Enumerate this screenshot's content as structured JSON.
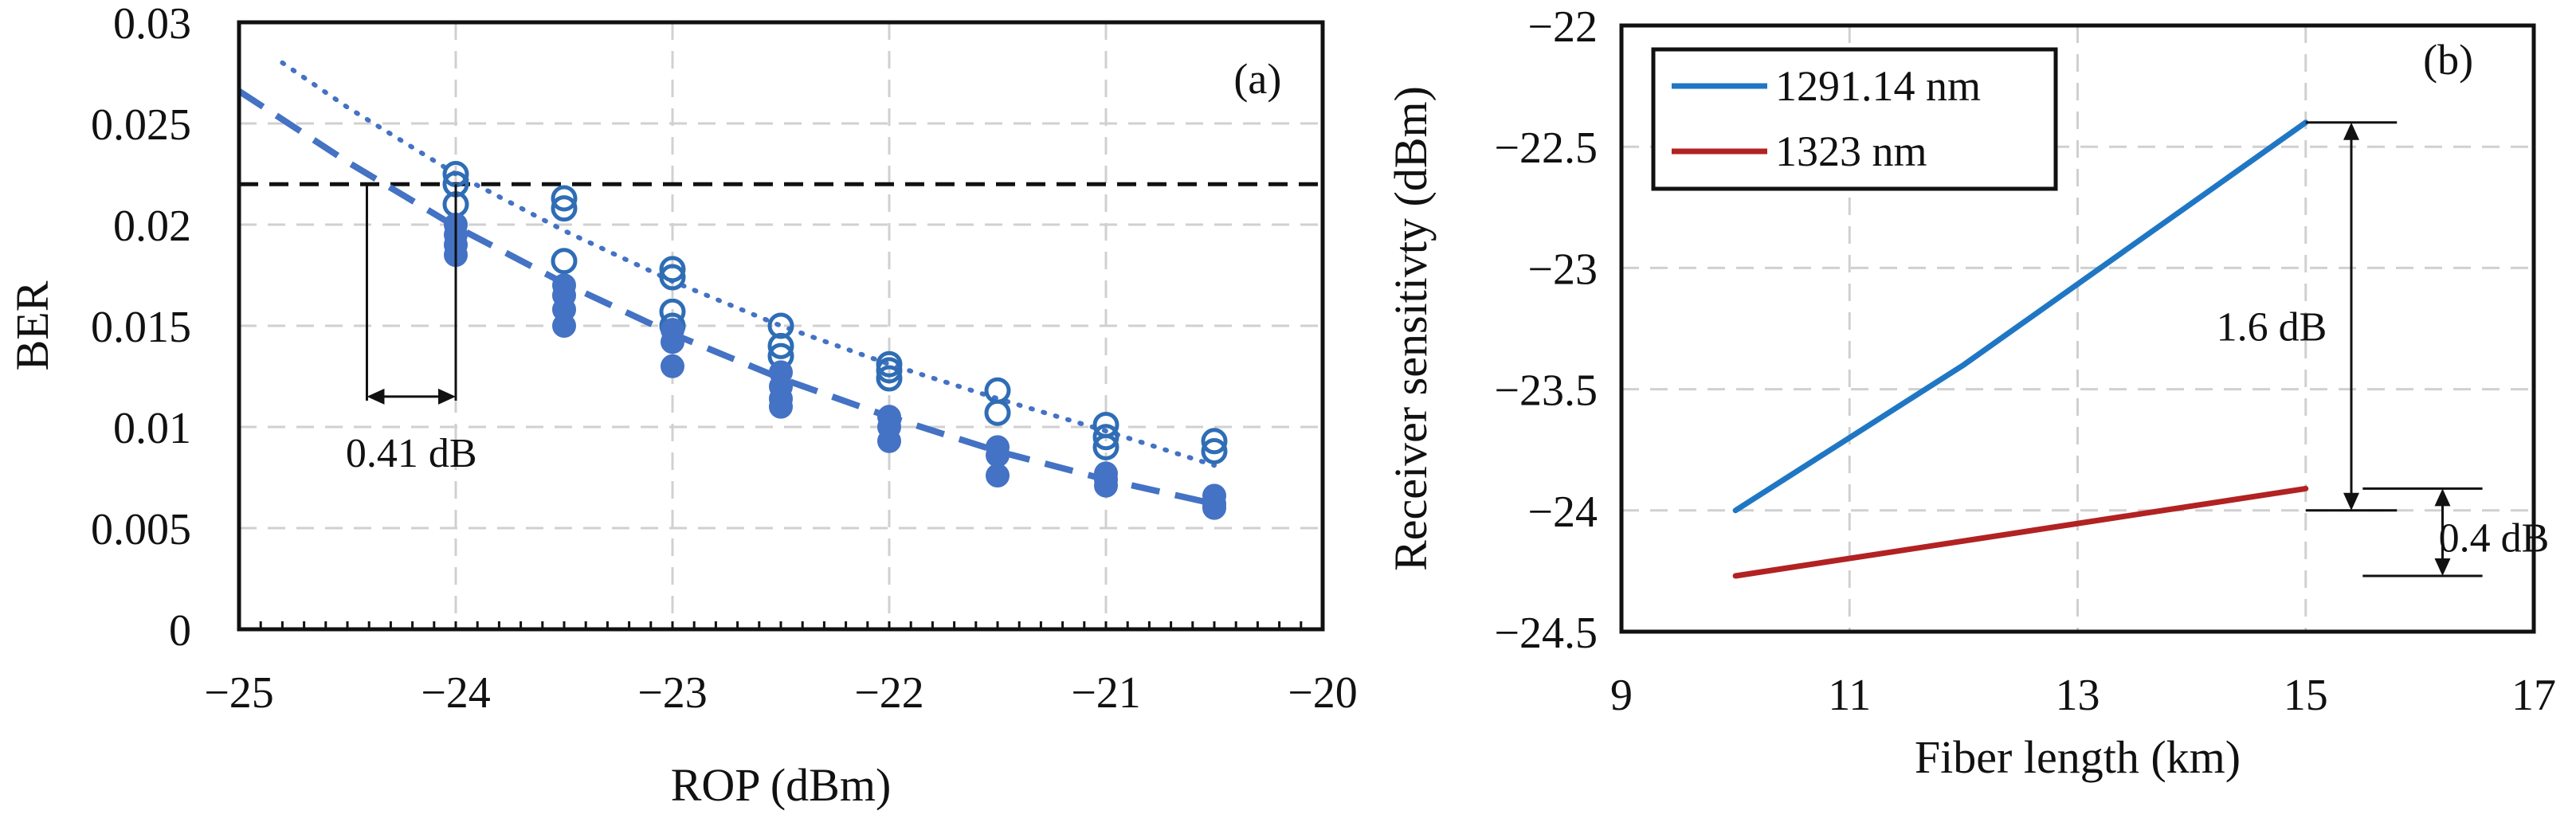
{
  "chart_data": [
    {
      "type": "scatter",
      "panel_label": "(a)",
      "xlabel": "ROP (dBm)",
      "ylabel": "BER",
      "xlim": [
        -25,
        -20
      ],
      "ylim": [
        0,
        0.03
      ],
      "xticks": [
        "−25",
        "−24",
        "−23",
        "−22",
        "−21",
        "−20"
      ],
      "xtick_values": [
        -25,
        -24,
        -23,
        -22,
        -21,
        -20
      ],
      "yticks": [
        "0",
        "0.005",
        "0.01",
        "0.015",
        "0.02",
        "0.025",
        "0.03"
      ],
      "ytick_values": [
        0,
        0.005,
        0.01,
        0.015,
        0.02,
        0.025,
        0.03
      ],
      "grid": true,
      "threshold_ber": 0.022,
      "annotation": {
        "text": "0.41 dB",
        "x_from": -24.41,
        "x_to": -24.0
      },
      "series": [
        {
          "name": "open circles",
          "marker": "open",
          "color": "#2f6db5",
          "points": [
            [
              -24.0,
              0.0225
            ],
            [
              -24.0,
              0.022
            ],
            [
              -24.0,
              0.021
            ],
            [
              -23.5,
              0.0213
            ],
            [
              -23.5,
              0.0208
            ],
            [
              -23.5,
              0.0182
            ],
            [
              -23.0,
              0.0178
            ],
            [
              -23.0,
              0.0174
            ],
            [
              -23.0,
              0.0157
            ],
            [
              -23.0,
              0.015
            ],
            [
              -22.5,
              0.015
            ],
            [
              -22.5,
              0.014
            ],
            [
              -22.5,
              0.0135
            ],
            [
              -22.0,
              0.0131
            ],
            [
              -22.0,
              0.0128
            ],
            [
              -22.0,
              0.0124
            ],
            [
              -21.5,
              0.0118
            ],
            [
              -21.5,
              0.0107
            ],
            [
              -21.0,
              0.0101
            ],
            [
              -21.0,
              0.0095
            ],
            [
              -21.0,
              0.009
            ],
            [
              -20.5,
              0.0093
            ],
            [
              -20.5,
              0.0088
            ]
          ]
        },
        {
          "name": "filled circles",
          "marker": "filled",
          "color": "#4472c4",
          "points": [
            [
              -24.0,
              0.02
            ],
            [
              -24.0,
              0.0195
            ],
            [
              -24.0,
              0.019
            ],
            [
              -24.0,
              0.0185
            ],
            [
              -23.5,
              0.017
            ],
            [
              -23.5,
              0.0165
            ],
            [
              -23.5,
              0.0158
            ],
            [
              -23.5,
              0.015
            ],
            [
              -23.0,
              0.0148
            ],
            [
              -23.0,
              0.0142
            ],
            [
              -23.0,
              0.013
            ],
            [
              -22.5,
              0.0127
            ],
            [
              -22.5,
              0.012
            ],
            [
              -22.5,
              0.0114
            ],
            [
              -22.5,
              0.011
            ],
            [
              -22.0,
              0.0105
            ],
            [
              -22.0,
              0.01
            ],
            [
              -22.0,
              0.0093
            ],
            [
              -21.5,
              0.009
            ],
            [
              -21.5,
              0.0086
            ],
            [
              -21.5,
              0.0076
            ],
            [
              -21.0,
              0.0077
            ],
            [
              -21.0,
              0.0074
            ],
            [
              -21.0,
              0.0071
            ],
            [
              -20.5,
              0.0066
            ],
            [
              -20.5,
              0.0062
            ],
            [
              -20.5,
              0.006
            ]
          ]
        },
        {
          "name": "dotted fit",
          "style": "dotted",
          "color": "#4472c4",
          "x": [
            -24.8,
            -24.5,
            -24.0,
            -23.5,
            -23.0,
            -22.5,
            -22.0,
            -21.5,
            -21.0,
            -20.5
          ],
          "y": [
            0.028,
            0.0258,
            0.0225,
            0.0197,
            0.0172,
            0.015,
            0.0131,
            0.0114,
            0.0098,
            0.0081
          ]
        },
        {
          "name": "dashed fit",
          "style": "dashed",
          "color": "#4472c4",
          "x": [
            -25.0,
            -24.5,
            -24.0,
            -23.5,
            -23.0,
            -22.5,
            -22.0,
            -21.5,
            -21.0,
            -20.5
          ],
          "y": [
            0.0266,
            0.0231,
            0.0199,
            0.0171,
            0.0146,
            0.0124,
            0.0105,
            0.0088,
            0.0074,
            0.0062
          ]
        }
      ]
    },
    {
      "type": "line",
      "panel_label": "(b)",
      "xlabel": "Fiber length (km)",
      "ylabel": "Receiver sensitivty (dBm)",
      "xlim": [
        9,
        17
      ],
      "ylim": [
        -24.5,
        -22
      ],
      "xticks": [
        "9",
        "11",
        "13",
        "15",
        "17"
      ],
      "xtick_values": [
        9,
        11,
        13,
        15,
        17
      ],
      "yticks": [
        "−22",
        "−22.5",
        "−23",
        "−23.5",
        "−24",
        "−24.5"
      ],
      "ytick_values": [
        -22,
        -22.5,
        -23,
        -23.5,
        -24,
        -24.5
      ],
      "grid": true,
      "legend_position": "top-left",
      "series": [
        {
          "name": "1291.14 nm",
          "color": "#1f77c4",
          "x": [
            10,
            12,
            15
          ],
          "y": [
            -24.0,
            -23.4,
            -22.4
          ]
        },
        {
          "name": "1323 nm",
          "color": "#b22222",
          "x": [
            10,
            15
          ],
          "y": [
            -24.27,
            -23.91
          ]
        }
      ],
      "annotations": [
        {
          "text": "1.6 dB",
          "x": 15.4,
          "y_from": -22.4,
          "y_to": -24.0
        },
        {
          "text": "0.4 dB",
          "x": 16.2,
          "y_from": -23.91,
          "y_to": -24.27
        }
      ]
    }
  ]
}
